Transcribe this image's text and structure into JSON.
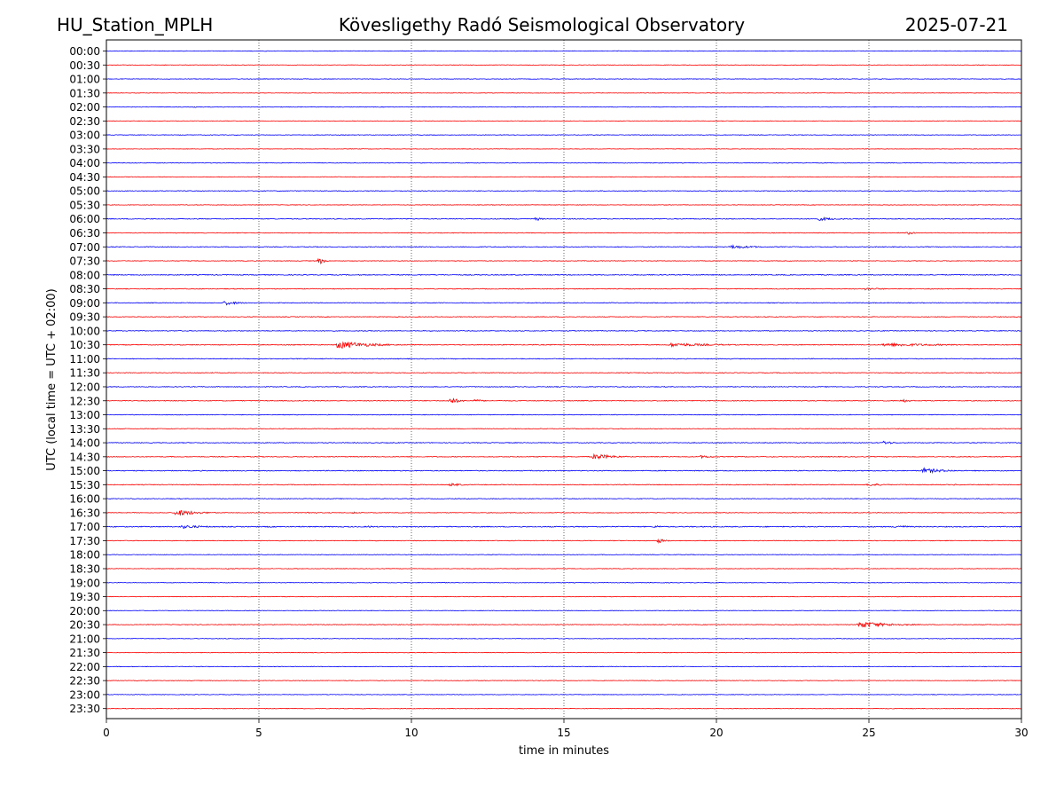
{
  "header": {
    "station": "HU_Station_MPLH",
    "observatory": "Kövesligethy Radó Seismological Observatory",
    "date": "2025-07-21"
  },
  "chart_data": {
    "type": "line",
    "subtype": "helicorder",
    "title": "Kövesligethy Radó Seismological Observatory",
    "xlabel": "time in minutes",
    "ylabel": "UTC (local time = UTC + 02:00)",
    "xlim": [
      0,
      30
    ],
    "x_ticks": [
      0,
      5,
      10,
      15,
      20,
      25,
      30
    ],
    "vertical_dotted_gridlines_at": [
      5,
      10,
      15,
      20,
      25
    ],
    "grid": false,
    "legend": "none",
    "trace_colors": [
      "#0000ff",
      "#ff0000"
    ],
    "row_labels": [
      "00:00",
      "00:30",
      "01:00",
      "01:30",
      "02:00",
      "02:30",
      "03:00",
      "03:30",
      "04:00",
      "04:30",
      "05:00",
      "05:30",
      "06:00",
      "06:30",
      "07:00",
      "07:30",
      "08:00",
      "08:30",
      "09:00",
      "09:30",
      "10:00",
      "10:30",
      "11:00",
      "11:30",
      "12:00",
      "12:30",
      "13:00",
      "13:30",
      "14:00",
      "14:30",
      "15:00",
      "15:30",
      "16:00",
      "16:30",
      "17:00",
      "17:30",
      "18:00",
      "18:30",
      "19:00",
      "19:30",
      "20:00",
      "20:30",
      "21:00",
      "21:30",
      "22:00",
      "22:30",
      "23:00",
      "23:30"
    ],
    "row_noise": [
      0.3,
      0.25,
      0.3,
      0.25,
      0.3,
      0.25,
      0.3,
      0.25,
      0.3,
      0.3,
      0.35,
      0.3,
      0.4,
      0.35,
      0.4,
      0.35,
      0.45,
      0.4,
      0.4,
      0.35,
      0.4,
      0.45,
      0.4,
      0.35,
      0.4,
      0.4,
      0.35,
      0.35,
      0.4,
      0.4,
      0.45,
      0.4,
      0.35,
      0.35,
      0.5,
      0.35,
      0.3,
      0.3,
      0.3,
      0.3,
      0.3,
      0.35,
      0.3,
      0.3,
      0.3,
      0.3,
      0.3,
      0.3
    ],
    "events": [
      {
        "row": 0,
        "t": 5.2,
        "amp": 0.6,
        "dur": 0.4
      },
      {
        "row": 0,
        "t": 13.4,
        "amp": 0.5,
        "dur": 0.3
      },
      {
        "row": 0,
        "t": 23.5,
        "amp": 0.4,
        "dur": 0.5
      },
      {
        "row": 4,
        "t": 2.9,
        "amp": 0.8,
        "dur": 0.2
      },
      {
        "row": 6,
        "t": 10.2,
        "amp": 0.6,
        "dur": 0.5
      },
      {
        "row": 12,
        "t": 1.5,
        "amp": 0.6,
        "dur": 0.8
      },
      {
        "row": 12,
        "t": 14.1,
        "amp": 2.0,
        "dur": 0.4
      },
      {
        "row": 12,
        "t": 21.5,
        "amp": 0.6,
        "dur": 0.3
      },
      {
        "row": 12,
        "t": 23.4,
        "amp": 2.0,
        "dur": 1.2
      },
      {
        "row": 13,
        "t": 26.3,
        "amp": 2.2,
        "dur": 0.3
      },
      {
        "row": 14,
        "t": 12.7,
        "amp": 0.9,
        "dur": 0.2
      },
      {
        "row": 14,
        "t": 20.5,
        "amp": 2.2,
        "dur": 1.5
      },
      {
        "row": 15,
        "t": 7.0,
        "amp": 4.0,
        "dur": 0.3
      },
      {
        "row": 17,
        "t": 24.9,
        "amp": 1.5,
        "dur": 1.2
      },
      {
        "row": 17,
        "t": 27.0,
        "amp": 0.8,
        "dur": 1.5
      },
      {
        "row": 18,
        "t": 3.9,
        "amp": 2.5,
        "dur": 0.9
      },
      {
        "row": 20,
        "t": 0.8,
        "amp": 0.8,
        "dur": 0.6
      },
      {
        "row": 20,
        "t": 29.9,
        "amp": 1.2,
        "dur": 0.2
      },
      {
        "row": 21,
        "t": 7.6,
        "amp": 4.5,
        "dur": 2.0
      },
      {
        "row": 21,
        "t": 18.5,
        "amp": 2.2,
        "dur": 3.0
      },
      {
        "row": 21,
        "t": 25.5,
        "amp": 2.0,
        "dur": 4.0
      },
      {
        "row": 22,
        "t": 7.0,
        "amp": 0.8,
        "dur": 0.5
      },
      {
        "row": 23,
        "t": 3.5,
        "amp": 0.6,
        "dur": 0.6
      },
      {
        "row": 23,
        "t": 8.0,
        "amp": 0.8,
        "dur": 0.8
      },
      {
        "row": 24,
        "t": 5.0,
        "amp": 0.8,
        "dur": 0.2
      },
      {
        "row": 24,
        "t": 28.0,
        "amp": 0.6,
        "dur": 0.8
      },
      {
        "row": 25,
        "t": 11.3,
        "amp": 4.0,
        "dur": 0.5
      },
      {
        "row": 25,
        "t": 12.1,
        "amp": 1.8,
        "dur": 0.5
      },
      {
        "row": 25,
        "t": 26.1,
        "amp": 2.0,
        "dur": 0.6
      },
      {
        "row": 28,
        "t": 25.5,
        "amp": 2.2,
        "dur": 0.6
      },
      {
        "row": 29,
        "t": 16.0,
        "amp": 3.5,
        "dur": 1.2
      },
      {
        "row": 29,
        "t": 19.5,
        "amp": 1.6,
        "dur": 1.0
      },
      {
        "row": 30,
        "t": 26.8,
        "amp": 3.0,
        "dur": 1.4
      },
      {
        "row": 31,
        "t": 11.3,
        "amp": 1.8,
        "dur": 0.8
      },
      {
        "row": 31,
        "t": 25.0,
        "amp": 1.8,
        "dur": 1.0
      },
      {
        "row": 31,
        "t": 27.8,
        "amp": 0.8,
        "dur": 0.6
      },
      {
        "row": 33,
        "t": 2.3,
        "amp": 4.0,
        "dur": 1.2
      },
      {
        "row": 33,
        "t": 6.6,
        "amp": 1.0,
        "dur": 1.0
      },
      {
        "row": 33,
        "t": 8.1,
        "amp": 1.2,
        "dur": 0.3
      },
      {
        "row": 34,
        "t": 2.5,
        "amp": 2.0,
        "dur": 1.5
      },
      {
        "row": 34,
        "t": 5.3,
        "amp": 0.8,
        "dur": 0.5
      },
      {
        "row": 34,
        "t": 8.6,
        "amp": 1.2,
        "dur": 0.5
      },
      {
        "row": 34,
        "t": 18.0,
        "amp": 1.5,
        "dur": 0.6
      },
      {
        "row": 34,
        "t": 25.9,
        "amp": 2.0,
        "dur": 0.8
      },
      {
        "row": 35,
        "t": 18.1,
        "amp": 2.5,
        "dur": 0.5
      },
      {
        "row": 37,
        "t": 4.0,
        "amp": 1.0,
        "dur": 0.5
      },
      {
        "row": 38,
        "t": 11.0,
        "amp": 0.6,
        "dur": 0.6
      },
      {
        "row": 41,
        "t": 24.7,
        "amp": 4.0,
        "dur": 1.8
      },
      {
        "row": 46,
        "t": 7.3,
        "amp": 0.6,
        "dur": 0.5
      }
    ]
  }
}
